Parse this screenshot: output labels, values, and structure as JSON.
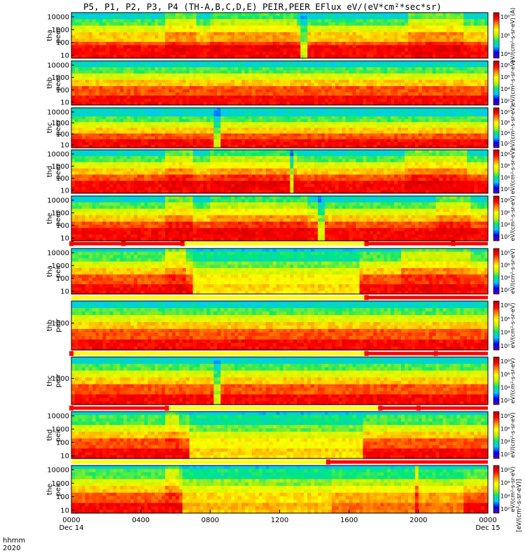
{
  "title": "P5, P1, P2, P3, P4 (TH-A,B,C,D,E) PEIR,PEER EFlux eV/(eV*cm²*sec*sr)",
  "x_axis": {
    "label_line1": "hhmm",
    "label_line2": "2020",
    "ticks": [
      "0000",
      "0400",
      "0800",
      "1200",
      "1600",
      "2000",
      "0000"
    ],
    "dates": [
      "Dec 14",
      "Dec 15"
    ]
  },
  "colorbar_unit": "[eV/(cm²-s-sr-eV)]",
  "colors": {
    "colorscale": [
      "#5a00a0",
      "#0000ff",
      "#00c8ff",
      "#00e878",
      "#c8f000",
      "#ffff00",
      "#ff8800",
      "#ff0000",
      "#b00000"
    ],
    "orbit_bar_yellow": "#ffff00",
    "orbit_bar_red": "#ff0000"
  },
  "chart_data": {
    "type": "heatmap",
    "x_range_hours": [
      0,
      24
    ],
    "panels": [
      {
        "name": "tha peer",
        "label1": "tha",
        "label2": "peer",
        "y_ticks": [
          "10",
          "100",
          "1000",
          "10000"
        ],
        "cb_ticks": [
          "10⁴",
          "10⁶",
          "10⁸"
        ],
        "cb_text": "eV/(cm²-s-sr-eV) (A)",
        "bands": [
          0.3,
          0.38,
          0.55,
          0.75,
          0.88
        ],
        "events": [
          {
            "x": 5.5,
            "w": 1.6,
            "mag": 0.8
          },
          {
            "x": 8.0,
            "w": 5.0,
            "mag": 0.6
          },
          {
            "x": 13.3,
            "w": 0.2,
            "mag": -1.0
          },
          {
            "x": 19.5,
            "w": 3.0,
            "mag": 0.8
          }
        ]
      },
      {
        "name": "thb peer",
        "label1": "thb",
        "label2": "peer",
        "y_ticks": [
          "10",
          "100",
          "1000",
          "10000"
        ],
        "cb_ticks": [
          "10²",
          "10⁴",
          "10⁶",
          "10⁸"
        ],
        "cb_text": "eV/(cm²-s-sr-eV)",
        "bands": [
          0.25,
          0.4,
          0.55,
          0.7,
          0.85
        ],
        "events": []
      },
      {
        "name": "thc peer",
        "label1": "thc",
        "label2": "peer",
        "y_ticks": [
          "10",
          "100",
          "1000",
          "10000"
        ],
        "cb_ticks": [
          "10²",
          "10⁴",
          "10⁶",
          "10⁸"
        ],
        "cb_text": "eV/(cm²-s-sr-eV)",
        "bands": [
          0.22,
          0.35,
          0.48,
          0.62,
          0.8
        ],
        "events": [
          {
            "x": 8.3,
            "w": 0.3,
            "mag": -1.0
          }
        ]
      },
      {
        "name": "thd peer",
        "label1": "thd",
        "label2": "peer",
        "y_ticks": [
          "10",
          "100",
          "1000",
          "10000"
        ],
        "cb_ticks": [
          "10²",
          "10⁴",
          "10⁶",
          "10⁸"
        ],
        "cb_text": "eV/(cm²-s-sr-eV)",
        "bands": [
          0.3,
          0.4,
          0.55,
          0.75,
          0.88
        ],
        "events": [
          {
            "x": 5.5,
            "w": 1.5,
            "mag": 0.8
          },
          {
            "x": 8.0,
            "w": 5.0,
            "mag": 0.6
          },
          {
            "x": 12.6,
            "w": 0.2,
            "mag": -1.0
          },
          {
            "x": 19.3,
            "w": 3.5,
            "mag": 0.8
          }
        ]
      },
      {
        "name": "the peer",
        "label1": "the",
        "label2": "peer",
        "y_ticks": [
          "10",
          "100",
          "1000",
          "10000"
        ],
        "cb_ticks": [
          "10²",
          "10⁴",
          "10⁶",
          "10⁸"
        ],
        "cb_text": "eV/(cm²-s-sr-eV)",
        "bands": [
          0.3,
          0.4,
          0.55,
          0.75,
          0.88
        ],
        "events": [
          {
            "x": 5.5,
            "w": 1.5,
            "mag": 0.8
          },
          {
            "x": 8.0,
            "w": 5.5,
            "mag": 0.6
          },
          {
            "x": 14.3,
            "w": 0.2,
            "mag": -1.0
          },
          {
            "x": 21.0,
            "w": 2.0,
            "mag": 0.8
          }
        ]
      },
      {
        "name": "tha peir",
        "label1": "tha",
        "label2": "peir",
        "y_ticks": [
          "10",
          "100",
          "1000",
          "10000"
        ],
        "cb_ticks": [
          "10²",
          "10⁴",
          "10⁶",
          "10⁸"
        ],
        "cb_text": "eV/(cm²-s-sr-eV)",
        "bands": [
          0.25,
          0.45,
          0.6,
          0.75,
          0.9
        ],
        "events": [
          {
            "x": 5.5,
            "w": 1.0,
            "mag": 0.8
          },
          {
            "x": 7.0,
            "w": 9.5,
            "mag": -0.6
          },
          {
            "x": 19.0,
            "w": 4.0,
            "mag": 0.7
          }
        ]
      },
      {
        "name": "thb peir",
        "label1": "thb",
        "label2": "peir",
        "y_ticks": [
          "1000"
        ],
        "cb_ticks": [
          "10²",
          "10⁴",
          "10⁶",
          "10⁸"
        ],
        "cb_text": "eV/(cm²-s-sr-eV)",
        "bands": [
          0.2,
          0.45,
          0.55,
          0.68,
          0.85
        ],
        "events": []
      },
      {
        "name": "thc peir",
        "label1": "thc",
        "label2": "peir",
        "y_ticks": [
          "1000"
        ],
        "cb_ticks": [
          "10²",
          "10⁴",
          "10⁶",
          "10⁸"
        ],
        "cb_text": "eV/(cm²-s-sr-eV)",
        "bands": [
          0.2,
          0.42,
          0.55,
          0.68,
          0.85
        ],
        "events": [
          {
            "x": 8.3,
            "w": 0.3,
            "mag": -1.0
          }
        ]
      },
      {
        "name": "thd peir",
        "label1": "thd",
        "label2": "peir",
        "y_ticks": [
          "10",
          "100",
          "1000",
          "10000"
        ],
        "cb_ticks": [
          "10²",
          "10⁴",
          "10⁶",
          "10⁸"
        ],
        "cb_text": "eV/(cm²-s-sr-eV)",
        "bands": [
          0.25,
          0.45,
          0.6,
          0.75,
          0.9
        ],
        "events": [
          {
            "x": 5.5,
            "w": 0.8,
            "mag": 0.6
          },
          {
            "x": 6.8,
            "w": 10.0,
            "mag": -0.6
          }
        ]
      },
      {
        "name": "the peir",
        "label1": "the",
        "label2": "peir",
        "y_ticks": [
          "10",
          "100",
          "1000",
          "10000"
        ],
        "cb_ticks": [
          "10²",
          "10⁴",
          "10⁶",
          "10⁸"
        ],
        "cb_text": "eV/(cm²-s-sr-eV)",
        "bands": [
          0.25,
          0.45,
          0.6,
          0.75,
          0.9
        ],
        "events": [
          {
            "x": 5.5,
            "w": 0.8,
            "mag": 0.7
          },
          {
            "x": 6.5,
            "w": 8.5,
            "mag": -0.5
          },
          {
            "x": 15.0,
            "w": 7.5,
            "mag": -0.3
          },
          {
            "x": 19.8,
            "w": 0.2,
            "mag": 0.9
          }
        ]
      }
    ],
    "orbit_bars": [
      {
        "after_panel": 4,
        "segments": [
          {
            "x0": 0,
            "x1": 6.5,
            "color": "red"
          },
          {
            "x0": 6.5,
            "x1": 17.0,
            "color": "yellow"
          },
          {
            "x0": 17.0,
            "x1": 24,
            "color": "red"
          }
        ],
        "markers": [
          0.0,
          3.0,
          6.4,
          17.0,
          22.0
        ]
      },
      {
        "after_panel": 5,
        "segments": [
          {
            "x0": 0,
            "x1": 17.0,
            "color": "yellow"
          },
          {
            "x0": 17.0,
            "x1": 24,
            "color": "red"
          }
        ],
        "markers": [
          17.0
        ]
      },
      {
        "after_panel": 6,
        "segments": [
          {
            "x0": 0,
            "x1": 17.0,
            "color": "yellow"
          },
          {
            "x0": 17.0,
            "x1": 24,
            "color": "red"
          }
        ],
        "markers": [
          0.0,
          17.0,
          21.0
        ]
      },
      {
        "after_panel": 7,
        "segments": [
          {
            "x0": 0,
            "x1": 5.5,
            "color": "red"
          },
          {
            "x0": 5.5,
            "x1": 17.8,
            "color": "yellow"
          },
          {
            "x0": 17.8,
            "x1": 24,
            "color": "red"
          }
        ],
        "markers": [
          0.0,
          5.5,
          17.8,
          20.0
        ]
      },
      {
        "after_panel": 8,
        "segments": [
          {
            "x0": 0,
            "x1": 14.8,
            "color": "yellow"
          },
          {
            "x0": 14.8,
            "x1": 24,
            "color": "red"
          }
        ],
        "markers": [
          14.8
        ]
      }
    ]
  }
}
